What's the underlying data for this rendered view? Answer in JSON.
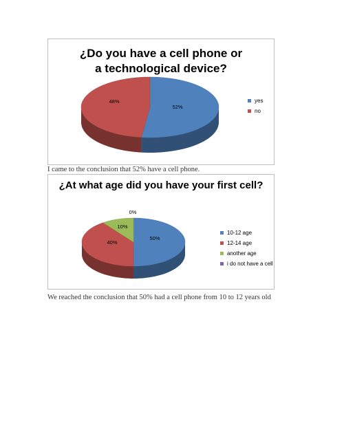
{
  "chart_data": [
    {
      "type": "pie",
      "title": "¿Do you have a cell phone or a technological device?",
      "categories": [
        "yes",
        "no"
      ],
      "values": [
        52,
        48
      ],
      "labels": [
        "52%",
        "48%"
      ],
      "colors": [
        "#4f81bd",
        "#c0504d"
      ],
      "legend": "right",
      "style": "3d"
    },
    {
      "type": "pie",
      "title": "¿At what age did you have your first cell?",
      "categories": [
        "10-12 age",
        "12-14 age",
        "another age",
        "i do not have a cell"
      ],
      "values": [
        50,
        40,
        10,
        0
      ],
      "labels": [
        "50%",
        "40%",
        "10%",
        "0%"
      ],
      "colors": [
        "#4f81bd",
        "#c0504d",
        "#9bbb59",
        "#8064a2"
      ],
      "legend": "right",
      "style": "3d"
    }
  ],
  "captions": [
    "I came to the conclusion that 52% have a cell phone.",
    "We reached the conclusion that 50% had a cell phone from 10 to 12 years old"
  ]
}
